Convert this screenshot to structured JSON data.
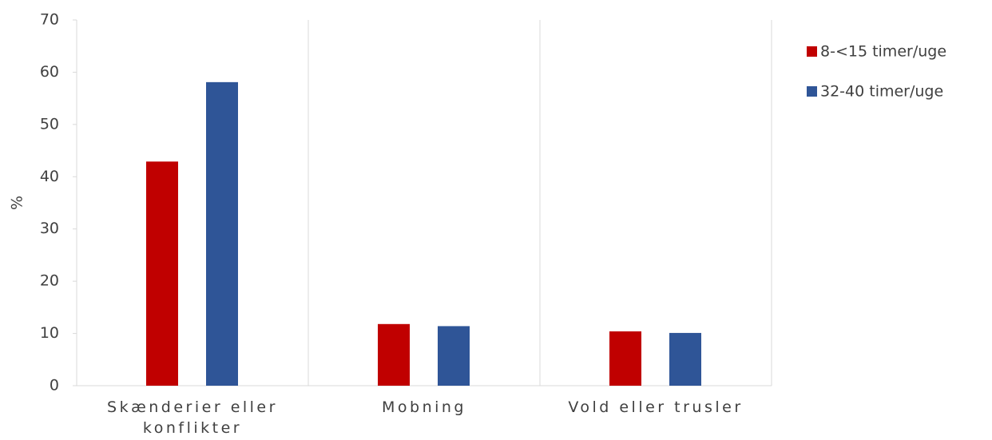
{
  "chart_data": {
    "type": "bar",
    "y_label": "%",
    "categories": [
      "Skænderier eller konflikter",
      "Mobning",
      "Vold eller trusler"
    ],
    "series": [
      {
        "name": "8-<15 timer/uge",
        "color": "#c00000",
        "values": [
          42.9,
          11.8,
          10.4
        ]
      },
      {
        "name": "32-40 timer/uge",
        "color": "#2f5597",
        "values": [
          58.1,
          11.4,
          10.1
        ]
      }
    ],
    "ylim": [
      0,
      70
    ],
    "yticks": [
      0,
      10,
      20,
      30,
      40,
      50,
      60,
      70
    ],
    "grid": false,
    "legend": "right"
  }
}
